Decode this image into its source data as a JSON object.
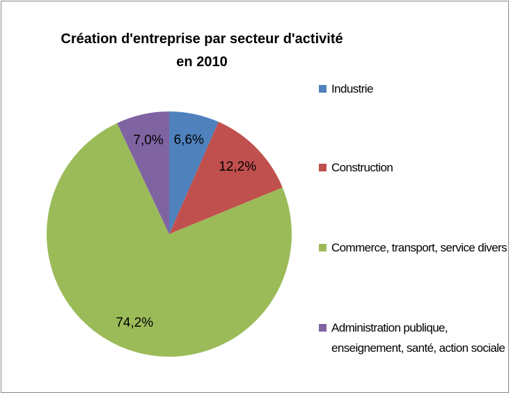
{
  "chart_data": {
    "type": "pie",
    "title": "Création d'entreprise par secteur d'activité en 2010",
    "categories": [
      "Industrie",
      "Construction",
      "Commerce, transport, service divers",
      "Administration publique, enseignement, santé, action sociale"
    ],
    "values": [
      6.6,
      12.2,
      74.2,
      7.0
    ],
    "value_labels": [
      "6,6%",
      "12,2%",
      "74,2%",
      "7,0%"
    ],
    "colors": [
      "#4f81bd",
      "#c0504d",
      "#9bbb59",
      "#8064a2"
    ],
    "legend": "right"
  }
}
